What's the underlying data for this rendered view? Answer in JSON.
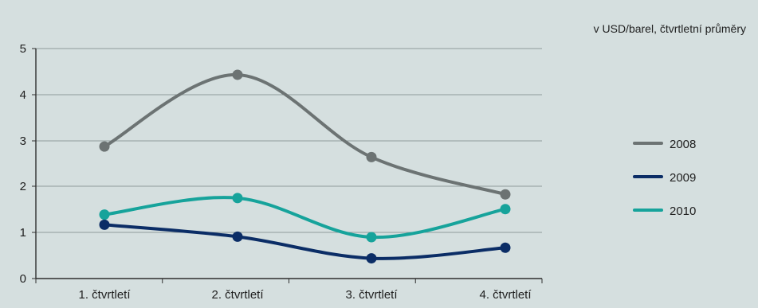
{
  "chart_data": {
    "type": "line",
    "title": "",
    "unit_label": "v USD/barel, čtvrtletní průměry",
    "xlabel": "",
    "ylabel": "",
    "categories": [
      "1. čtvrtletí",
      "2. čtvrtletí",
      "3. čtvrtletí",
      "4. čtvrtletí"
    ],
    "ylim": [
      0,
      5
    ],
    "yticks": [
      "0",
      "1",
      "2",
      "3",
      "4",
      "5"
    ],
    "grid": true,
    "legend_position": "right",
    "series": [
      {
        "name": "2008",
        "values": [
          2.87,
          4.43,
          2.64,
          1.83
        ],
        "color": "#6c7373"
      },
      {
        "name": "2009",
        "values": [
          1.17,
          0.91,
          0.44,
          0.67
        ],
        "color": "#0b2d66"
      },
      {
        "name": "2010",
        "values": [
          1.39,
          1.75,
          0.9,
          1.51
        ],
        "color": "#16a39b"
      }
    ]
  }
}
